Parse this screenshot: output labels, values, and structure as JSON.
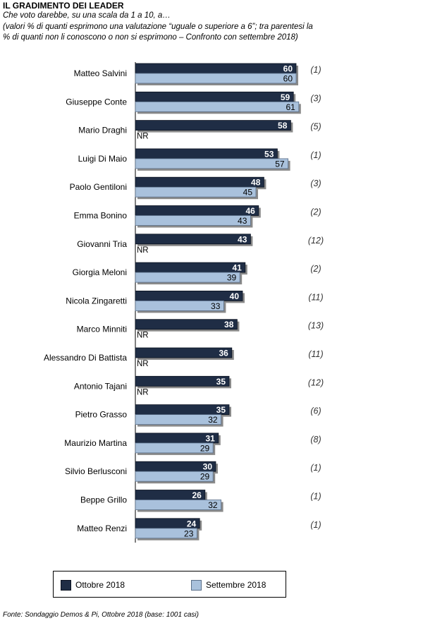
{
  "chart_data": {
    "type": "bar",
    "orientation": "horizontal",
    "title": "IL GRADIMENTO DEI LEADER",
    "subtitle_lines": [
      "Che voto darebbe,  su una scala da 1 a 10, a…",
      "(valori % di quanti esprimono una valutazione “uguale o superiore a 6”; tra parentesi la",
      "% di quanti non li conoscono o non si esprimono – Confronto con settembre 2018)"
    ],
    "categories": [
      "Matteo Salvini",
      "Giuseppe Conte",
      "Mario Draghi",
      "Luigi Di Maio",
      "Paolo Gentiloni",
      "Emma Bonino",
      "Giovanni Tria",
      "Giorgia Meloni",
      "Nicola Zingaretti",
      "Marco Minniti",
      "Alessandro Di Battista",
      "Antonio Tajani",
      "Pietro Grasso",
      "Maurizio Martina",
      "Silvio Berlusconi",
      "Beppe Grillo",
      "Matteo Renzi"
    ],
    "series": [
      {
        "name": "Ottobre 2018",
        "values": [
          60,
          59,
          58,
          53,
          48,
          46,
          43,
          41,
          40,
          38,
          36,
          35,
          35,
          31,
          30,
          26,
          24
        ],
        "color": "#1f2d45"
      },
      {
        "name": "Settembre 2018",
        "values": [
          60,
          61,
          null,
          57,
          45,
          43,
          null,
          39,
          33,
          null,
          null,
          null,
          32,
          29,
          29,
          32,
          23
        ],
        "color": "#a9c1dc"
      }
    ],
    "missing_label": "NR",
    "annotations": [
      "(1)",
      "(3)",
      "(5)",
      "(1)",
      "(3)",
      "(2)",
      "(12)",
      "(2)",
      "(11)",
      "(13)",
      "(11)",
      "(12)",
      "(6)",
      "(8)",
      "(1)",
      "(1)",
      "(1)"
    ],
    "legend_position": "bottom"
  },
  "footer": "Fonte: Sondaggio Demos & Pi, Ottobre 2018 (base: 1001 casi)"
}
